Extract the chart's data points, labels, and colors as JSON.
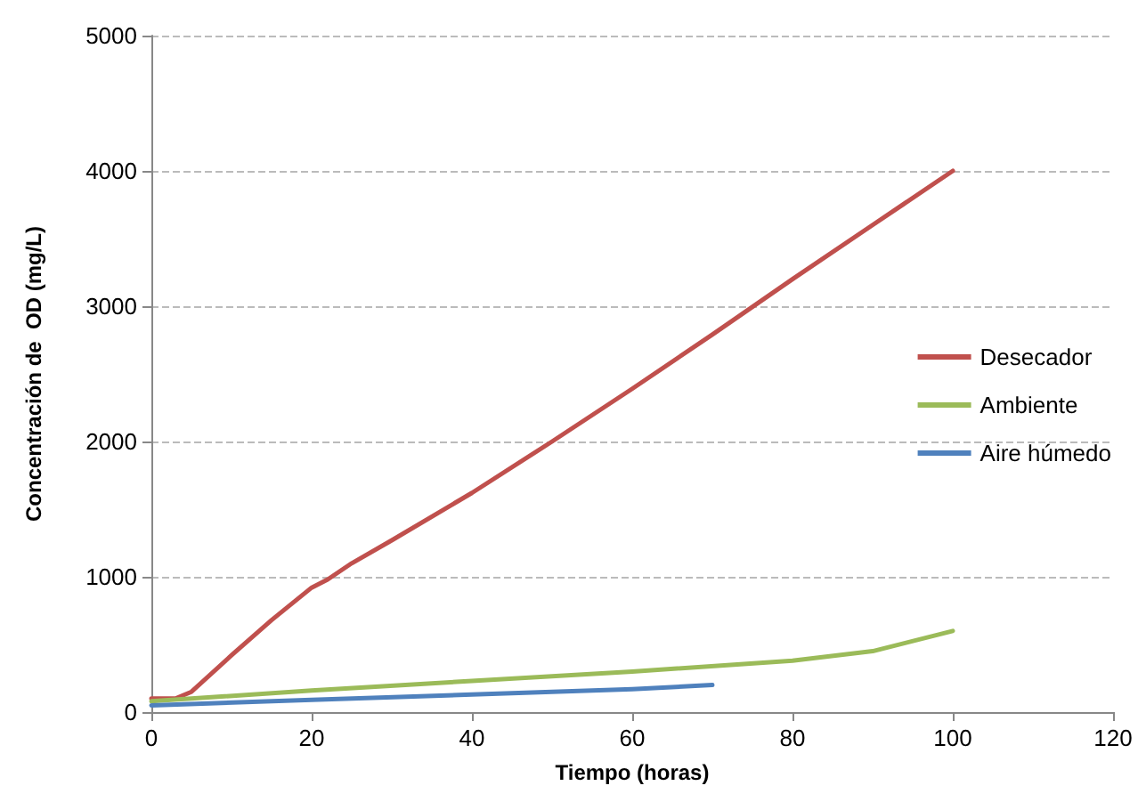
{
  "chart_data": {
    "type": "line",
    "xlabel": "Tiempo (horas)",
    "ylabel": "Concentración de  OD (mg/L)",
    "xlim": [
      0,
      120
    ],
    "xticks": [
      0,
      20,
      40,
      60,
      80,
      100,
      120
    ],
    "ylim": [
      0,
      5000
    ],
    "yticks": [
      0,
      1000,
      2000,
      3000,
      4000,
      5000
    ],
    "grid": "y",
    "legend": "right",
    "marker": "none",
    "line_style": "solid",
    "series": [
      {
        "name": "Desecador",
        "color": "#c0504d",
        "x": [
          0,
          3,
          5,
          10,
          15,
          20,
          22,
          25,
          30,
          40,
          50,
          60,
          70,
          80,
          90,
          100
        ],
        "values": [
          100,
          100,
          150,
          420,
          680,
          920,
          980,
          1100,
          1270,
          1620,
          2000,
          2390,
          2790,
          3200,
          3600,
          4000
        ]
      },
      {
        "name": "Ambiente",
        "color": "#9bbb59",
        "x": [
          0,
          20,
          40,
          60,
          80,
          90,
          100
        ],
        "values": [
          80,
          160,
          230,
          300,
          380,
          450,
          600
        ]
      },
      {
        "name": "Aire húmedo",
        "color": "#4f81bd",
        "x": [
          0,
          20,
          40,
          60,
          70
        ],
        "values": [
          50,
          90,
          130,
          170,
          200
        ]
      }
    ]
  }
}
